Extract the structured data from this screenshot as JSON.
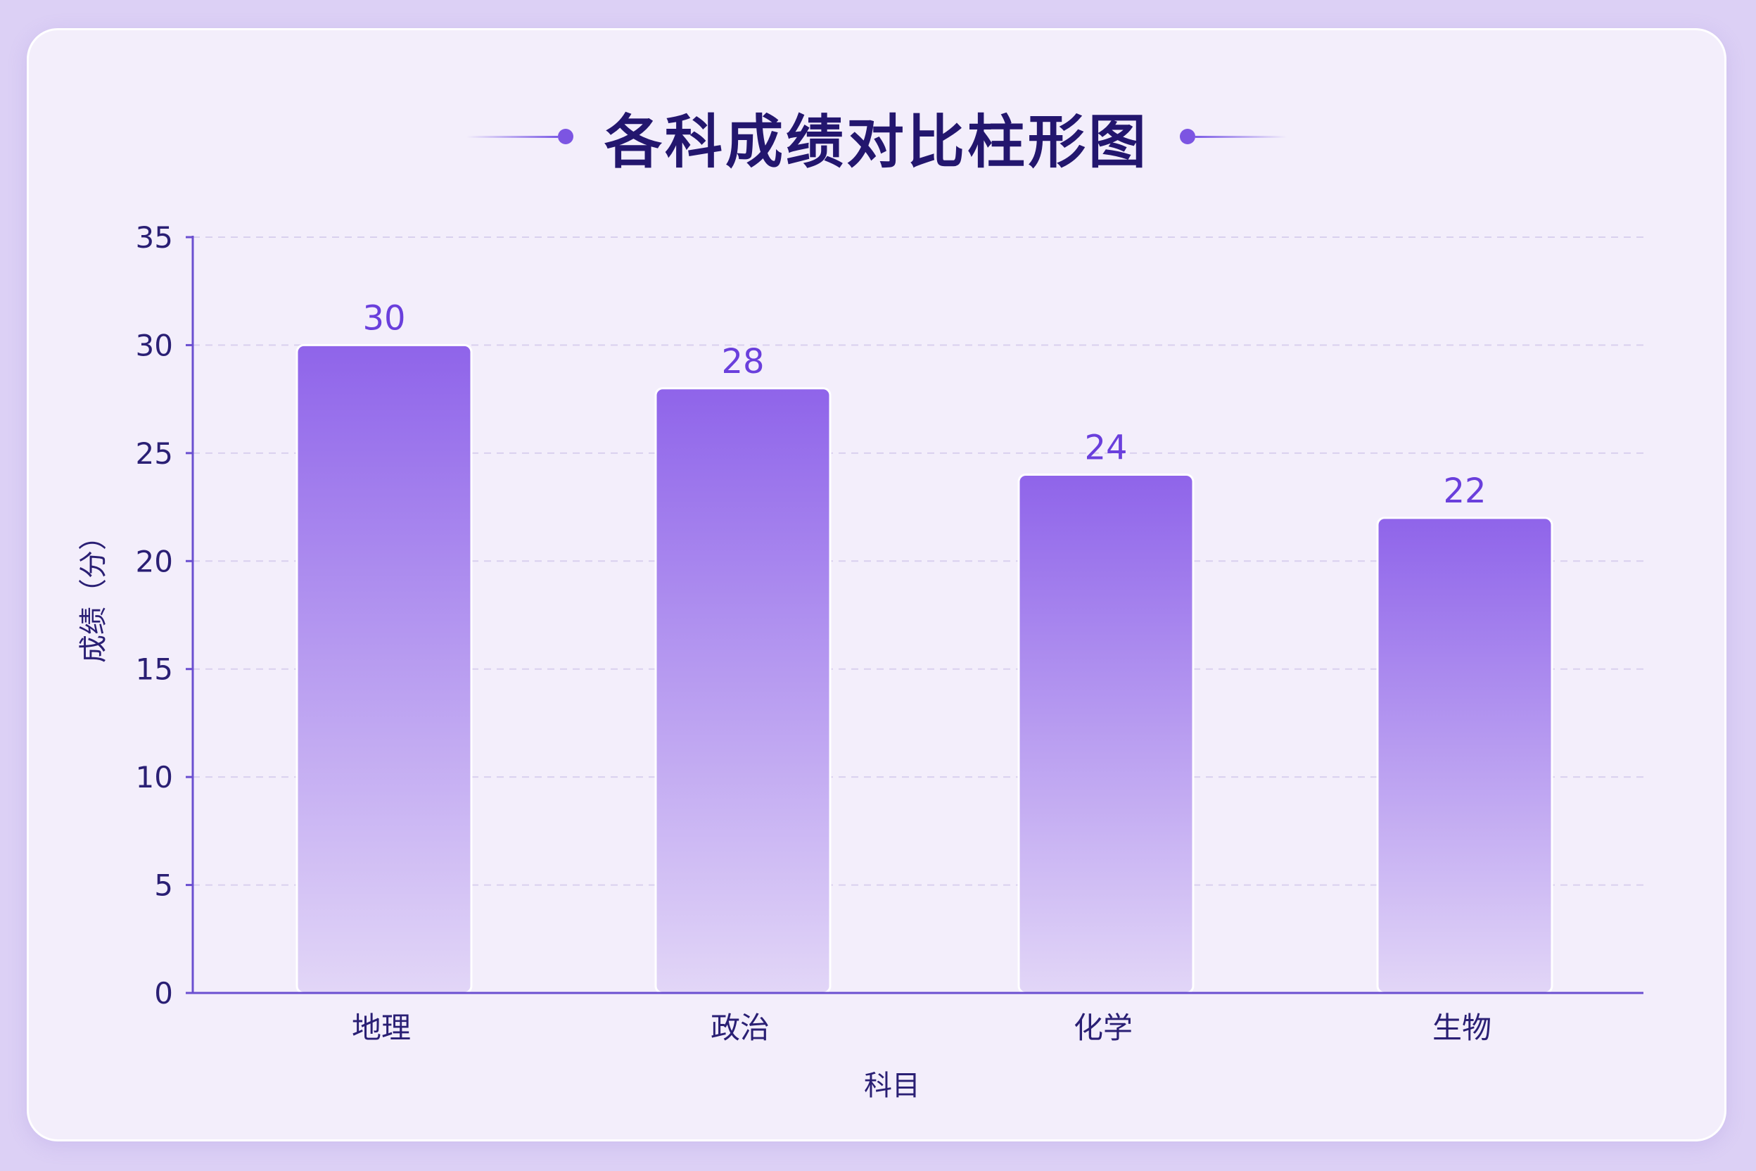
{
  "chart_data": {
    "type": "bar",
    "title": "各科成绩对比柱形图",
    "categories": [
      "地理",
      "政治",
      "化学",
      "生物"
    ],
    "values": [
      30,
      28,
      24,
      22
    ],
    "value_labels": [
      "30",
      "28",
      "24",
      "22"
    ],
    "xlabel": "科目",
    "ylabel": "成绩（分）",
    "ylim": [
      0,
      35
    ],
    "yticks": [
      0,
      5,
      10,
      15,
      20,
      25,
      30,
      35
    ],
    "grid": true,
    "legend": "none"
  },
  "colors": {
    "background": "#dcd0f5",
    "card": "#f3eefb",
    "title": "#23166e",
    "bar_top": "#8f64ea",
    "bar_bottom": "#e2d6f7",
    "value_label": "#6a3fdc",
    "axis": "#6b4fd0",
    "grid": "#d9d0ee"
  }
}
